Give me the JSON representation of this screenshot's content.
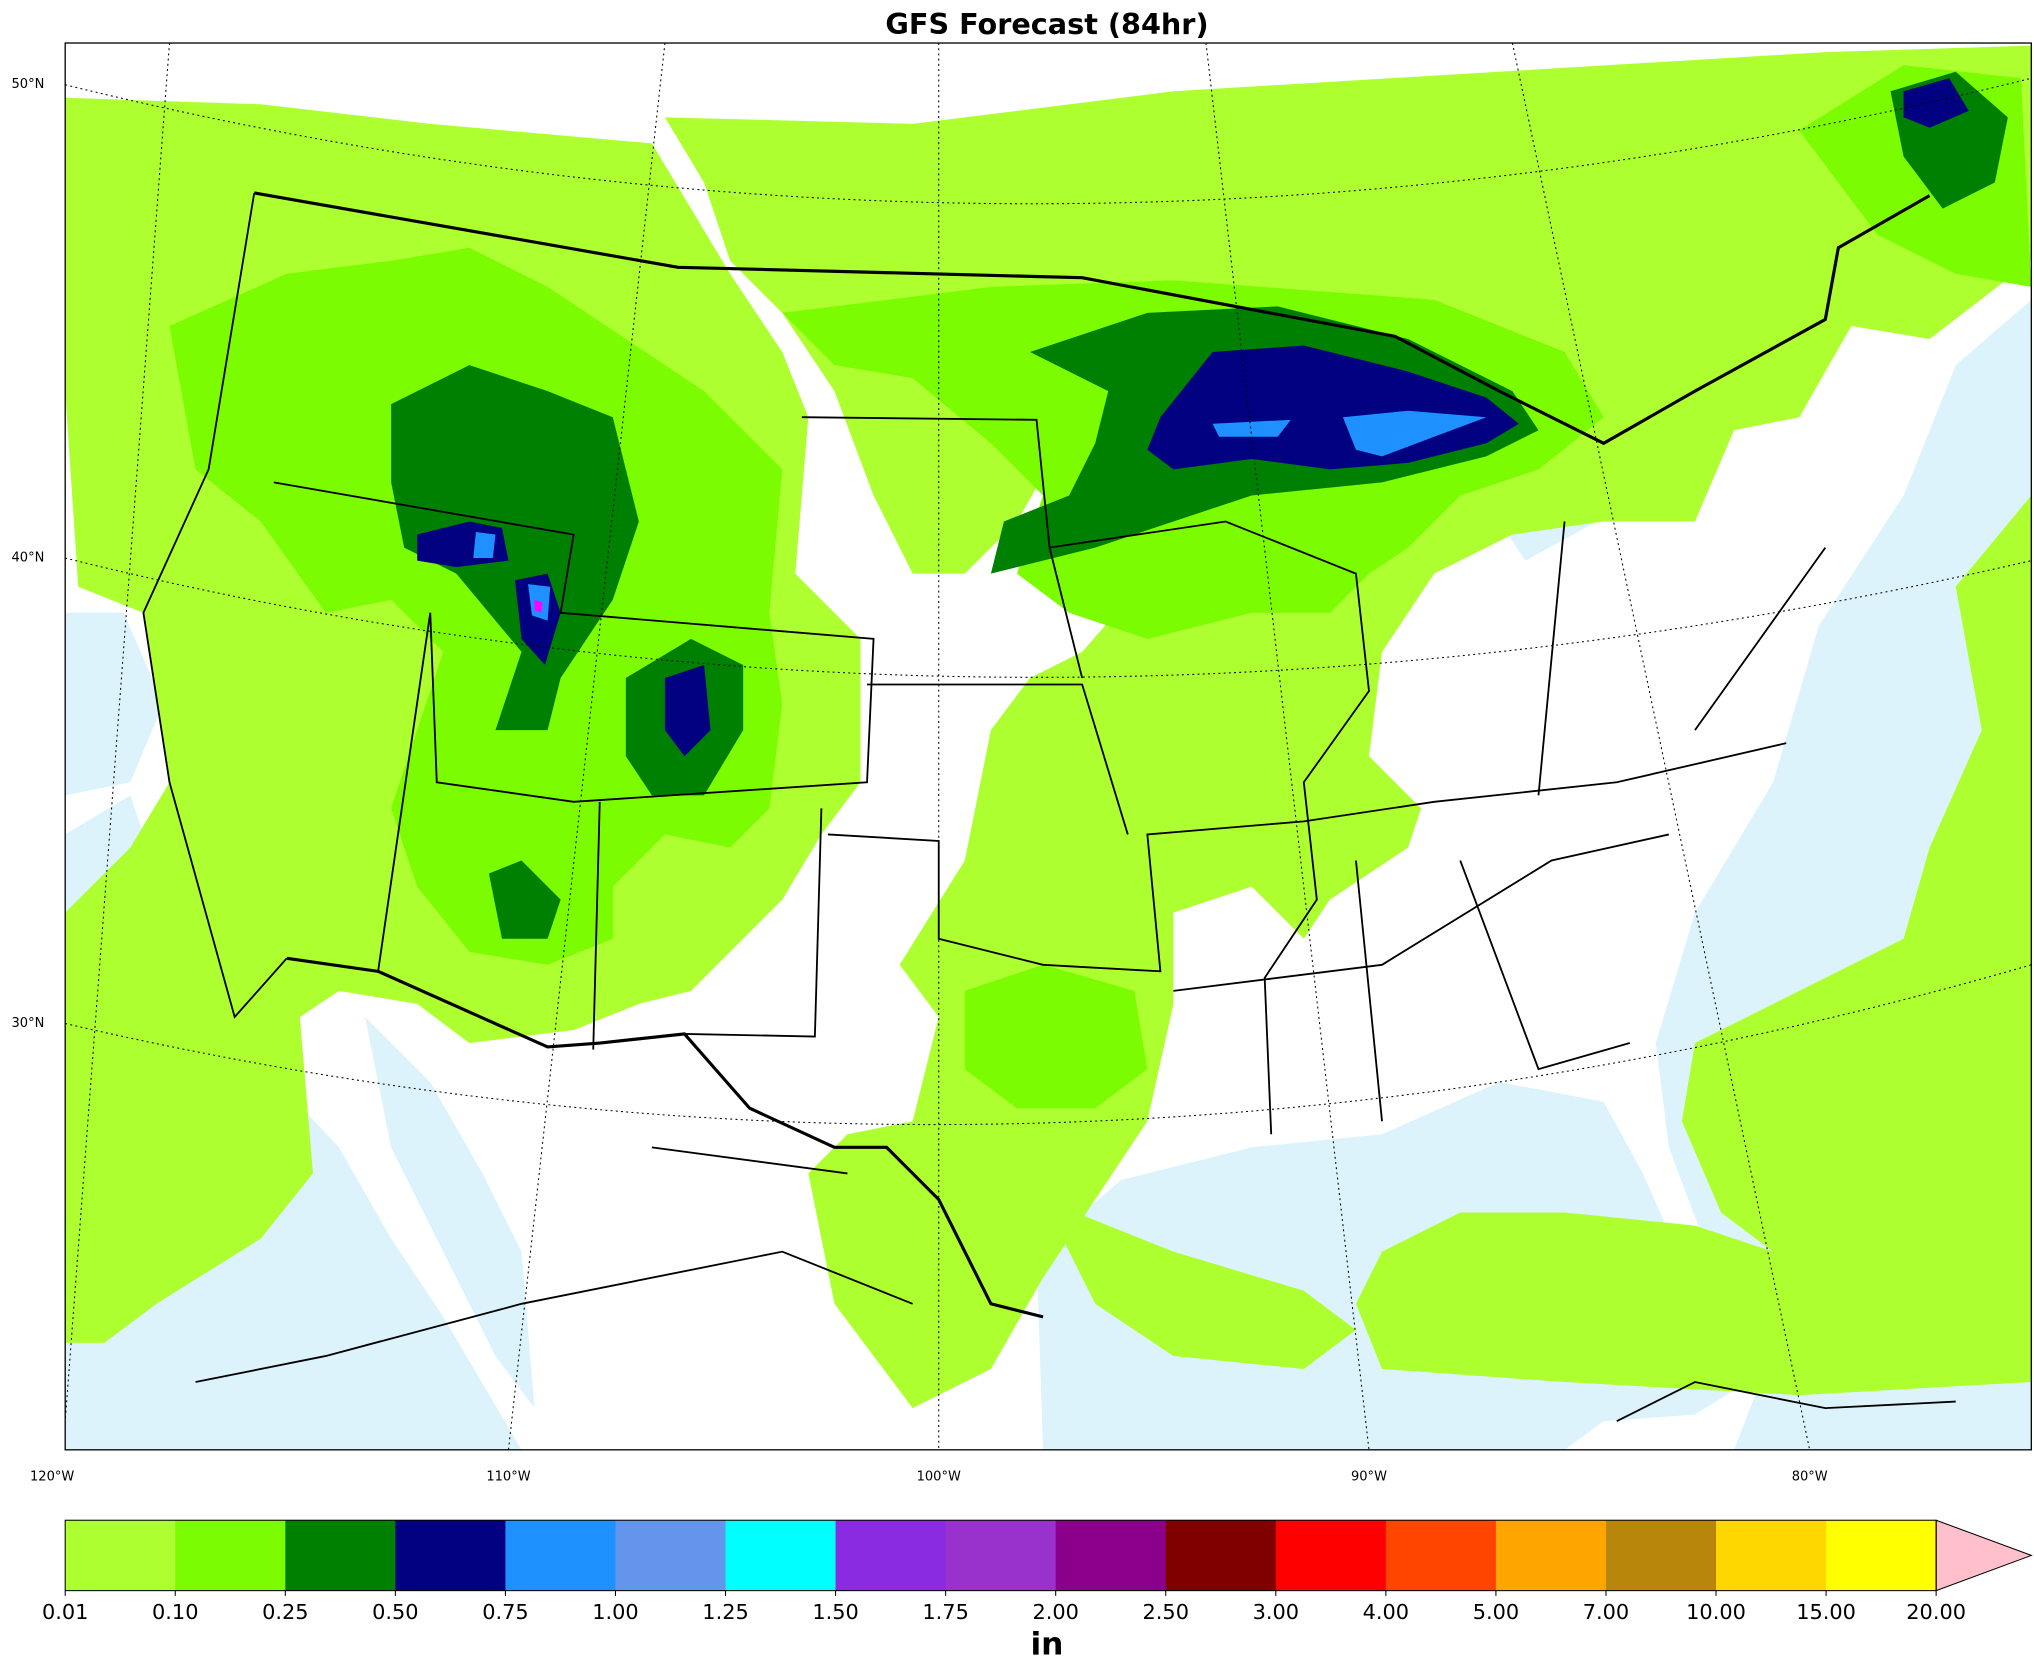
{
  "header": {
    "title": "GFS Forecast (84hr)"
  },
  "map": {
    "lat_labels": [
      "50°N",
      "40°N",
      "30°N"
    ],
    "lon_labels": [
      "120°W",
      "110°W",
      "100°W",
      "90°W",
      "80°W"
    ]
  },
  "colorbar": {
    "labels": [
      "0.01",
      "0.10",
      "0.25",
      "0.50",
      "0.75",
      "1.00",
      "1.25",
      "1.50",
      "1.75",
      "2.00",
      "2.50",
      "3.00",
      "4.00",
      "5.00",
      "7.00",
      "10.00",
      "15.00",
      "20.00"
    ],
    "colors": [
      "#adff2f",
      "#7cfc00",
      "#008000",
      "#000080",
      "#1e90ff",
      "#6495ed",
      "#00ffff",
      "#8a2be2",
      "#9932cc",
      "#8b008b",
      "#800000",
      "#ff0000",
      "#ff4500",
      "#ffa500",
      "#b8860b",
      "#ffd700",
      "#ffff00"
    ],
    "extend_color": "#ffc0cb",
    "unit": "in"
  }
}
